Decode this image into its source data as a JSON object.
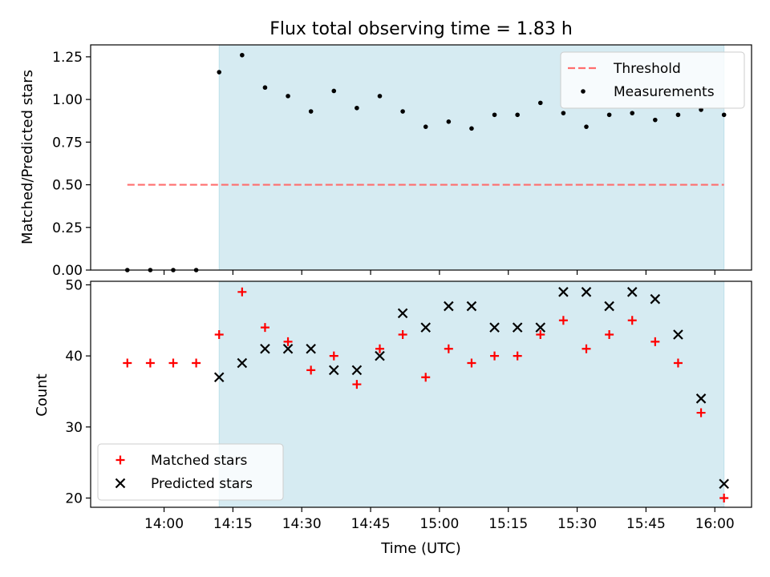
{
  "chart_data": [
    {
      "type": "scatter",
      "title": "Flux total observing time = 1.83 h",
      "xlabel": "",
      "ylabel": "Matched/Predicted stars",
      "x_time_range": [
        "13:44",
        "16:08"
      ],
      "ylim": [
        0,
        1.32
      ],
      "yticks": [
        "0.00",
        "0.25",
        "0.50",
        "0.75",
        "1.00",
        "1.25"
      ],
      "shaded_span": {
        "start": "14:12",
        "end": "16:02",
        "color": "#add8e6"
      },
      "threshold": {
        "name": "Threshold",
        "value": 0.5,
        "x_start": "13:52",
        "x_end": "16:02",
        "color": "#ff6e6e",
        "style": "dashed"
      },
      "series": [
        {
          "name": "Measurements",
          "marker": "dot",
          "color": "#000000",
          "points": [
            {
              "x": "13:52",
              "y": 0.0
            },
            {
              "x": "13:57",
              "y": 0.0
            },
            {
              "x": "14:02",
              "y": 0.0
            },
            {
              "x": "14:07",
              "y": 0.0
            },
            {
              "x": "14:12",
              "y": 1.16
            },
            {
              "x": "14:17",
              "y": 1.26
            },
            {
              "x": "14:22",
              "y": 1.07
            },
            {
              "x": "14:27",
              "y": 1.02
            },
            {
              "x": "14:32",
              "y": 0.93
            },
            {
              "x": "14:37",
              "y": 1.05
            },
            {
              "x": "14:42",
              "y": 0.95
            },
            {
              "x": "14:47",
              "y": 1.02
            },
            {
              "x": "14:52",
              "y": 0.93
            },
            {
              "x": "14:57",
              "y": 0.84
            },
            {
              "x": "15:02",
              "y": 0.87
            },
            {
              "x": "15:07",
              "y": 0.83
            },
            {
              "x": "15:12",
              "y": 0.91
            },
            {
              "x": "15:17",
              "y": 0.91
            },
            {
              "x": "15:22",
              "y": 0.98
            },
            {
              "x": "15:27",
              "y": 0.92
            },
            {
              "x": "15:32",
              "y": 0.84
            },
            {
              "x": "15:37",
              "y": 0.91
            },
            {
              "x": "15:42",
              "y": 0.92
            },
            {
              "x": "15:47",
              "y": 0.88
            },
            {
              "x": "15:52",
              "y": 0.91
            },
            {
              "x": "15:57",
              "y": 0.94
            },
            {
              "x": "16:02",
              "y": 0.91
            }
          ]
        }
      ],
      "legend": {
        "position": "top-right",
        "entries": [
          "Threshold",
          "Measurements"
        ]
      }
    },
    {
      "type": "scatter",
      "title": "",
      "xlabel": "Time (UTC)",
      "ylabel": "Count",
      "x_time_range": [
        "13:44",
        "16:08"
      ],
      "xticks": [
        "14:00",
        "14:15",
        "14:30",
        "14:45",
        "15:00",
        "15:15",
        "15:30",
        "15:45",
        "16:00"
      ],
      "ylim": [
        18.7,
        50.5
      ],
      "yticks": [
        "20",
        "30",
        "40",
        "50"
      ],
      "shaded_span": {
        "start": "14:12",
        "end": "16:02",
        "color": "#add8e6"
      },
      "series": [
        {
          "name": "Matched stars",
          "marker": "plus",
          "color": "#ff0000",
          "points": [
            {
              "x": "13:52",
              "y": 39
            },
            {
              "x": "13:57",
              "y": 39
            },
            {
              "x": "14:02",
              "y": 39
            },
            {
              "x": "14:07",
              "y": 39
            },
            {
              "x": "14:12",
              "y": 43
            },
            {
              "x": "14:17",
              "y": 49
            },
            {
              "x": "14:22",
              "y": 44
            },
            {
              "x": "14:27",
              "y": 42
            },
            {
              "x": "14:32",
              "y": 38
            },
            {
              "x": "14:37",
              "y": 40
            },
            {
              "x": "14:42",
              "y": 36
            },
            {
              "x": "14:47",
              "y": 41
            },
            {
              "x": "14:52",
              "y": 43
            },
            {
              "x": "14:57",
              "y": 37
            },
            {
              "x": "15:02",
              "y": 41
            },
            {
              "x": "15:07",
              "y": 39
            },
            {
              "x": "15:12",
              "y": 40
            },
            {
              "x": "15:17",
              "y": 40
            },
            {
              "x": "15:22",
              "y": 43
            },
            {
              "x": "15:27",
              "y": 45
            },
            {
              "x": "15:32",
              "y": 41
            },
            {
              "x": "15:37",
              "y": 43
            },
            {
              "x": "15:42",
              "y": 45
            },
            {
              "x": "15:47",
              "y": 42
            },
            {
              "x": "15:52",
              "y": 39
            },
            {
              "x": "15:57",
              "y": 32
            },
            {
              "x": "16:02",
              "y": 20
            }
          ]
        },
        {
          "name": "Predicted stars",
          "marker": "x",
          "color": "#000000",
          "points": [
            {
              "x": "14:12",
              "y": 37
            },
            {
              "x": "14:17",
              "y": 39
            },
            {
              "x": "14:22",
              "y": 41
            },
            {
              "x": "14:27",
              "y": 41
            },
            {
              "x": "14:32",
              "y": 41
            },
            {
              "x": "14:37",
              "y": 38
            },
            {
              "x": "14:42",
              "y": 38
            },
            {
              "x": "14:47",
              "y": 40
            },
            {
              "x": "14:52",
              "y": 46
            },
            {
              "x": "14:57",
              "y": 44
            },
            {
              "x": "15:02",
              "y": 47
            },
            {
              "x": "15:07",
              "y": 47
            },
            {
              "x": "15:12",
              "y": 44
            },
            {
              "x": "15:17",
              "y": 44
            },
            {
              "x": "15:22",
              "y": 44
            },
            {
              "x": "15:27",
              "y": 49
            },
            {
              "x": "15:32",
              "y": 49
            },
            {
              "x": "15:37",
              "y": 47
            },
            {
              "x": "15:42",
              "y": 49
            },
            {
              "x": "15:47",
              "y": 48
            },
            {
              "x": "15:52",
              "y": 43
            },
            {
              "x": "15:57",
              "y": 34
            },
            {
              "x": "16:02",
              "y": 22
            }
          ]
        }
      ],
      "legend": {
        "position": "bottom-left",
        "entries": [
          "Matched stars",
          "Predicted stars"
        ]
      }
    }
  ]
}
